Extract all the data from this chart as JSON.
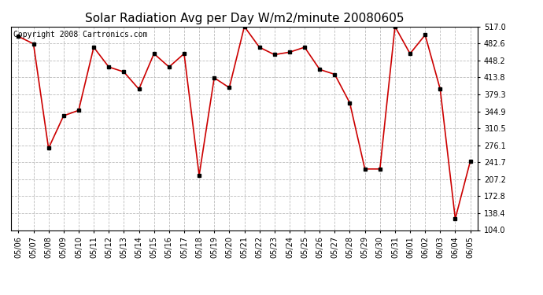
{
  "title": "Solar Radiation Avg per Day W/m2/minute 20080605",
  "copyright": "Copyright 2008 Cartronics.com",
  "labels": [
    "05/06",
    "05/07",
    "05/08",
    "05/09",
    "05/10",
    "05/11",
    "05/12",
    "05/13",
    "05/14",
    "05/15",
    "05/16",
    "05/17",
    "05/18",
    "05/19",
    "05/20",
    "05/21",
    "05/22",
    "05/23",
    "05/24",
    "05/25",
    "05/26",
    "05/27",
    "05/28",
    "05/29",
    "05/30",
    "05/31",
    "06/01",
    "06/02",
    "06/03",
    "06/04",
    "06/05"
  ],
  "values": [
    497,
    482,
    270,
    336,
    347,
    475,
    435,
    425,
    390,
    462,
    435,
    462,
    215,
    413,
    393,
    517,
    475,
    460,
    465,
    475,
    430,
    420,
    362,
    228,
    228,
    517,
    462,
    500,
    390,
    127,
    244
  ],
  "line_color": "#cc0000",
  "marker_color": "#000000",
  "bg_color": "#ffffff",
  "grid_color": "#bbbbbb",
  "yticks": [
    104.0,
    138.4,
    172.8,
    207.2,
    241.7,
    276.1,
    310.5,
    344.9,
    379.3,
    413.8,
    448.2,
    482.6,
    517.0
  ],
  "ymin": 104.0,
  "ymax": 517.0,
  "title_fontsize": 11,
  "copyright_fontsize": 7,
  "tick_fontsize": 7,
  "xlabel_fontsize": 7
}
